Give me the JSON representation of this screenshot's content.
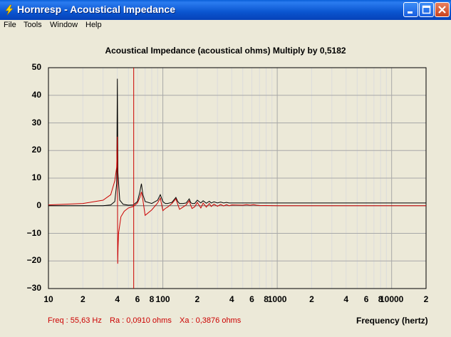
{
  "window": {
    "title": "Hornresp - Acoustical Impedance"
  },
  "menu": [
    "File",
    "Tools",
    "Window",
    "Help"
  ],
  "chart_data": {
    "type": "line",
    "title": "Acoustical Impedance (acoustical ohms)   Multiply by 0,5182",
    "xlabel": "Frequency (hertz)",
    "ylabel": "",
    "xscale": "log",
    "xlim": [
      10,
      20000
    ],
    "ylim": [
      -30,
      50
    ],
    "y_ticks": [
      "50",
      "40",
      "30",
      "20",
      "10",
      "0",
      "−10",
      "−20",
      "−30"
    ],
    "x_ticks": [
      {
        "label": "10",
        "value": 10
      },
      {
        "label": "2",
        "value": 20
      },
      {
        "label": "4",
        "value": 40
      },
      {
        "label": "6",
        "value": 60
      },
      {
        "label": "8",
        "value": 80
      },
      {
        "label": "100",
        "value": 100
      },
      {
        "label": "2",
        "value": 200
      },
      {
        "label": "4",
        "value": 400
      },
      {
        "label": "6",
        "value": 600
      },
      {
        "label": "8",
        "value": 800
      },
      {
        "label": "1000",
        "value": 1000
      },
      {
        "label": "2",
        "value": 2000
      },
      {
        "label": "4",
        "value": 4000
      },
      {
        "label": "6",
        "value": 6000
      },
      {
        "label": "8",
        "value": 8000
      },
      {
        "label": "10000",
        "value": 10000
      },
      {
        "label": "2",
        "value": 20000
      }
    ],
    "grid": true,
    "cursor_frequency": 55.63,
    "series": [
      {
        "color": "#000000",
        "x": [
          10,
          20,
          30,
          35,
          38,
          39.5,
          40,
          40.5,
          42,
          45,
          50,
          55,
          60,
          63,
          65,
          67,
          70,
          80,
          90,
          95,
          100,
          105,
          110,
          120,
          130,
          135,
          140,
          150,
          160,
          170,
          175,
          180,
          190,
          200,
          215,
          225,
          240,
          255,
          265,
          280,
          300,
          320,
          340,
          360,
          380,
          400,
          500,
          1000,
          20000
        ],
        "y": [
          0,
          0,
          0,
          0.3,
          1.5,
          8,
          46,
          12,
          2,
          0.5,
          0.2,
          0.3,
          1.5,
          5,
          8,
          4,
          1.5,
          0.8,
          2,
          4,
          1.5,
          0.8,
          0.8,
          1.2,
          3,
          1.5,
          0.8,
          0.8,
          1,
          2.5,
          1.2,
          0.8,
          0.8,
          2,
          1,
          1.8,
          0.9,
          1.6,
          1,
          1.4,
          1,
          1.3,
          1,
          1.2,
          1,
          1,
          1,
          1,
          1
        ]
      },
      {
        "color": "#cc0000",
        "x": [
          10,
          20,
          30,
          35,
          38,
          39.5,
          40,
          40.3,
          40.6,
          41,
          43,
          46,
          50,
          55,
          60,
          63,
          65,
          67,
          70,
          80,
          90,
          95,
          97,
          100,
          105,
          110,
          120,
          130,
          135,
          140,
          150,
          160,
          170,
          175,
          180,
          190,
          200,
          215,
          225,
          240,
          255,
          265,
          280,
          300,
          320,
          340,
          360,
          380,
          400,
          500,
          540,
          580,
          620,
          660,
          700,
          1000,
          20000
        ],
        "y": [
          0.3,
          0.8,
          2,
          4,
          9,
          14,
          25,
          -21,
          -15,
          -10,
          -4,
          -2,
          -0.8,
          -0.3,
          1,
          3,
          5,
          2,
          -3.5,
          -1.5,
          1,
          2.8,
          1,
          -1.8,
          -1,
          -0.5,
          0.8,
          2.5,
          0.5,
          -1.3,
          -0.5,
          0.3,
          1.8,
          0.2,
          -1,
          -0.4,
          1.2,
          -0.8,
          1,
          -0.5,
          0.8,
          -0.3,
          0.6,
          -0.2,
          0.5,
          -0.1,
          0.4,
          0,
          0.3,
          0.2,
          0.4,
          0.2,
          0.4,
          0.2,
          0.1,
          0,
          0
        ]
      }
    ]
  },
  "status": {
    "freq": "Freq : 55,63 Hz",
    "ra": "Ra : 0,0910 ohms",
    "xa": "Xa : 0,3876 ohms"
  }
}
